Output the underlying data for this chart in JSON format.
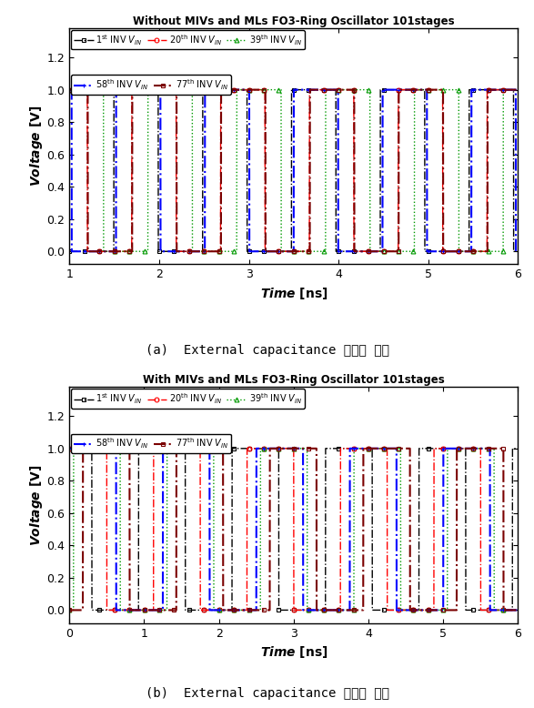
{
  "title_a": "Without MIVs and MLs FO3-Ring Oscillator 101stages",
  "title_b": "With MIVs and MLs FO3-Ring Oscillator 101stages",
  "caption_a": "(a)  External capacitance 무시한 경우",
  "caption_b": "(b)  External capacitance 고려한 경우",
  "ylim": [
    -0.08,
    1.38
  ],
  "yticks": [
    0.0,
    0.2,
    0.4,
    0.6,
    0.8,
    1.0,
    1.2
  ],
  "series": [
    {
      "label_parts": [
        "1",
        "st",
        " INV ",
        "V",
        "IN"
      ],
      "color": "black",
      "marker": "s",
      "ls": "-.",
      "lw": 1.0,
      "mfc": "none"
    },
    {
      "label_parts": [
        "20",
        "th",
        " INV ",
        "V",
        "IN"
      ],
      "color": "red",
      "marker": "o",
      "ls": "-.",
      "lw": 1.0,
      "mfc": "none"
    },
    {
      "label_parts": [
        "39",
        "th",
        " INV ",
        "V",
        "IN"
      ],
      "color": "#009900",
      "marker": "^",
      "ls": ":",
      "lw": 1.0,
      "mfc": "none"
    },
    {
      "label_parts": [
        "58",
        "th",
        " INV ",
        "V",
        "IN"
      ],
      "color": "blue",
      "marker": "+",
      "ls": "-.",
      "lw": 1.5,
      "mfc": "blue"
    },
    {
      "label_parts": [
        "77",
        "th",
        " INV ",
        "V",
        "IN"
      ],
      "color": "#7B0000",
      "marker": "s",
      "ls": "-.",
      "lw": 1.5,
      "mfc": "none"
    }
  ],
  "subplot_a": {
    "xlim": [
      1.0,
      6.0
    ],
    "xticks": [
      1,
      2,
      3,
      4,
      5,
      6
    ],
    "period": 0.99,
    "phases": [
      0.0,
      0.2,
      0.38,
      0.52,
      0.7
    ],
    "start_vals": [
      0,
      0,
      0,
      1,
      1
    ]
  },
  "subplot_b": {
    "xlim": [
      0.0,
      6.0
    ],
    "xticks": [
      0,
      1,
      2,
      3,
      4,
      5,
      6
    ],
    "period": 1.25,
    "phases": [
      0.3,
      0.5,
      0.68,
      0.0,
      0.18
    ],
    "start_vals": [
      0,
      0,
      0,
      1,
      1
    ]
  },
  "bg_color": "white",
  "marker_size": 3.5,
  "n_points": 6000
}
